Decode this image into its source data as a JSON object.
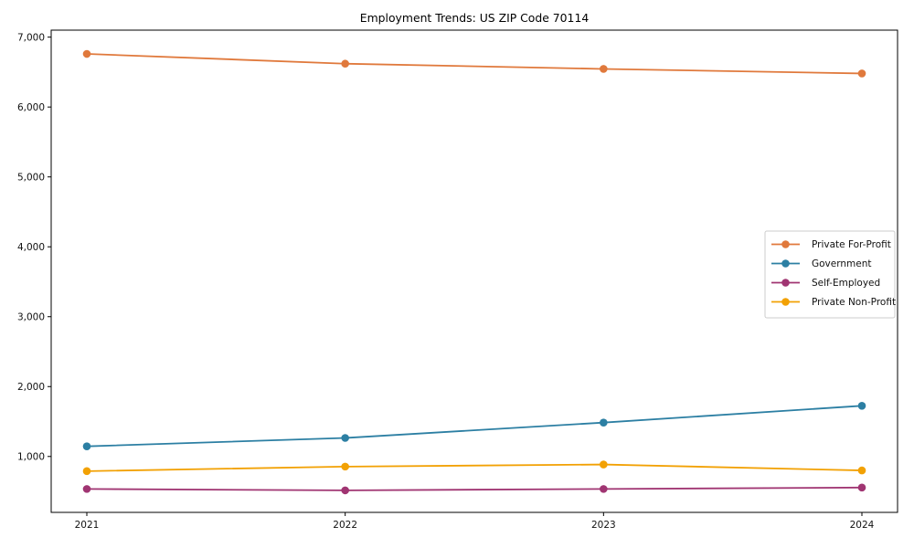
{
  "chart_data": {
    "type": "line",
    "title": "Employment Trends: US ZIP Code 70114",
    "xlabel": "",
    "ylabel": "",
    "x": [
      2021,
      2022,
      2023,
      2024
    ],
    "x_tick_labels": [
      "2021",
      "2022",
      "2023",
      "2024"
    ],
    "series": [
      {
        "name": "Private For-Profit",
        "color": "#e0793c",
        "values": [
          6760,
          6620,
          6545,
          6480
        ]
      },
      {
        "name": "Government",
        "color": "#2c7fa3",
        "values": [
          1145,
          1265,
          1485,
          1725
        ]
      },
      {
        "name": "Self-Employed",
        "color": "#a03572",
        "values": [
          535,
          515,
          535,
          555
        ]
      },
      {
        "name": "Private Non-Profit",
        "color": "#f2a104",
        "values": [
          790,
          855,
          885,
          800
        ]
      }
    ],
    "y_ticks": [
      1000,
      2000,
      3000,
      4000,
      5000,
      6000,
      7000
    ],
    "y_tick_labels": [
      "1,000",
      "2,000",
      "3,000",
      "4,000",
      "5,000",
      "6,000",
      "7,000"
    ],
    "ylim": [
      200,
      7100
    ],
    "grid": false,
    "legend": {
      "position": "center right",
      "border_color": "#cccccc",
      "background": "#ffffff",
      "entries": [
        "Private For-Profit",
        "Government",
        "Self-Employed",
        "Private Non-Profit"
      ]
    },
    "frame_color": "#000000"
  }
}
